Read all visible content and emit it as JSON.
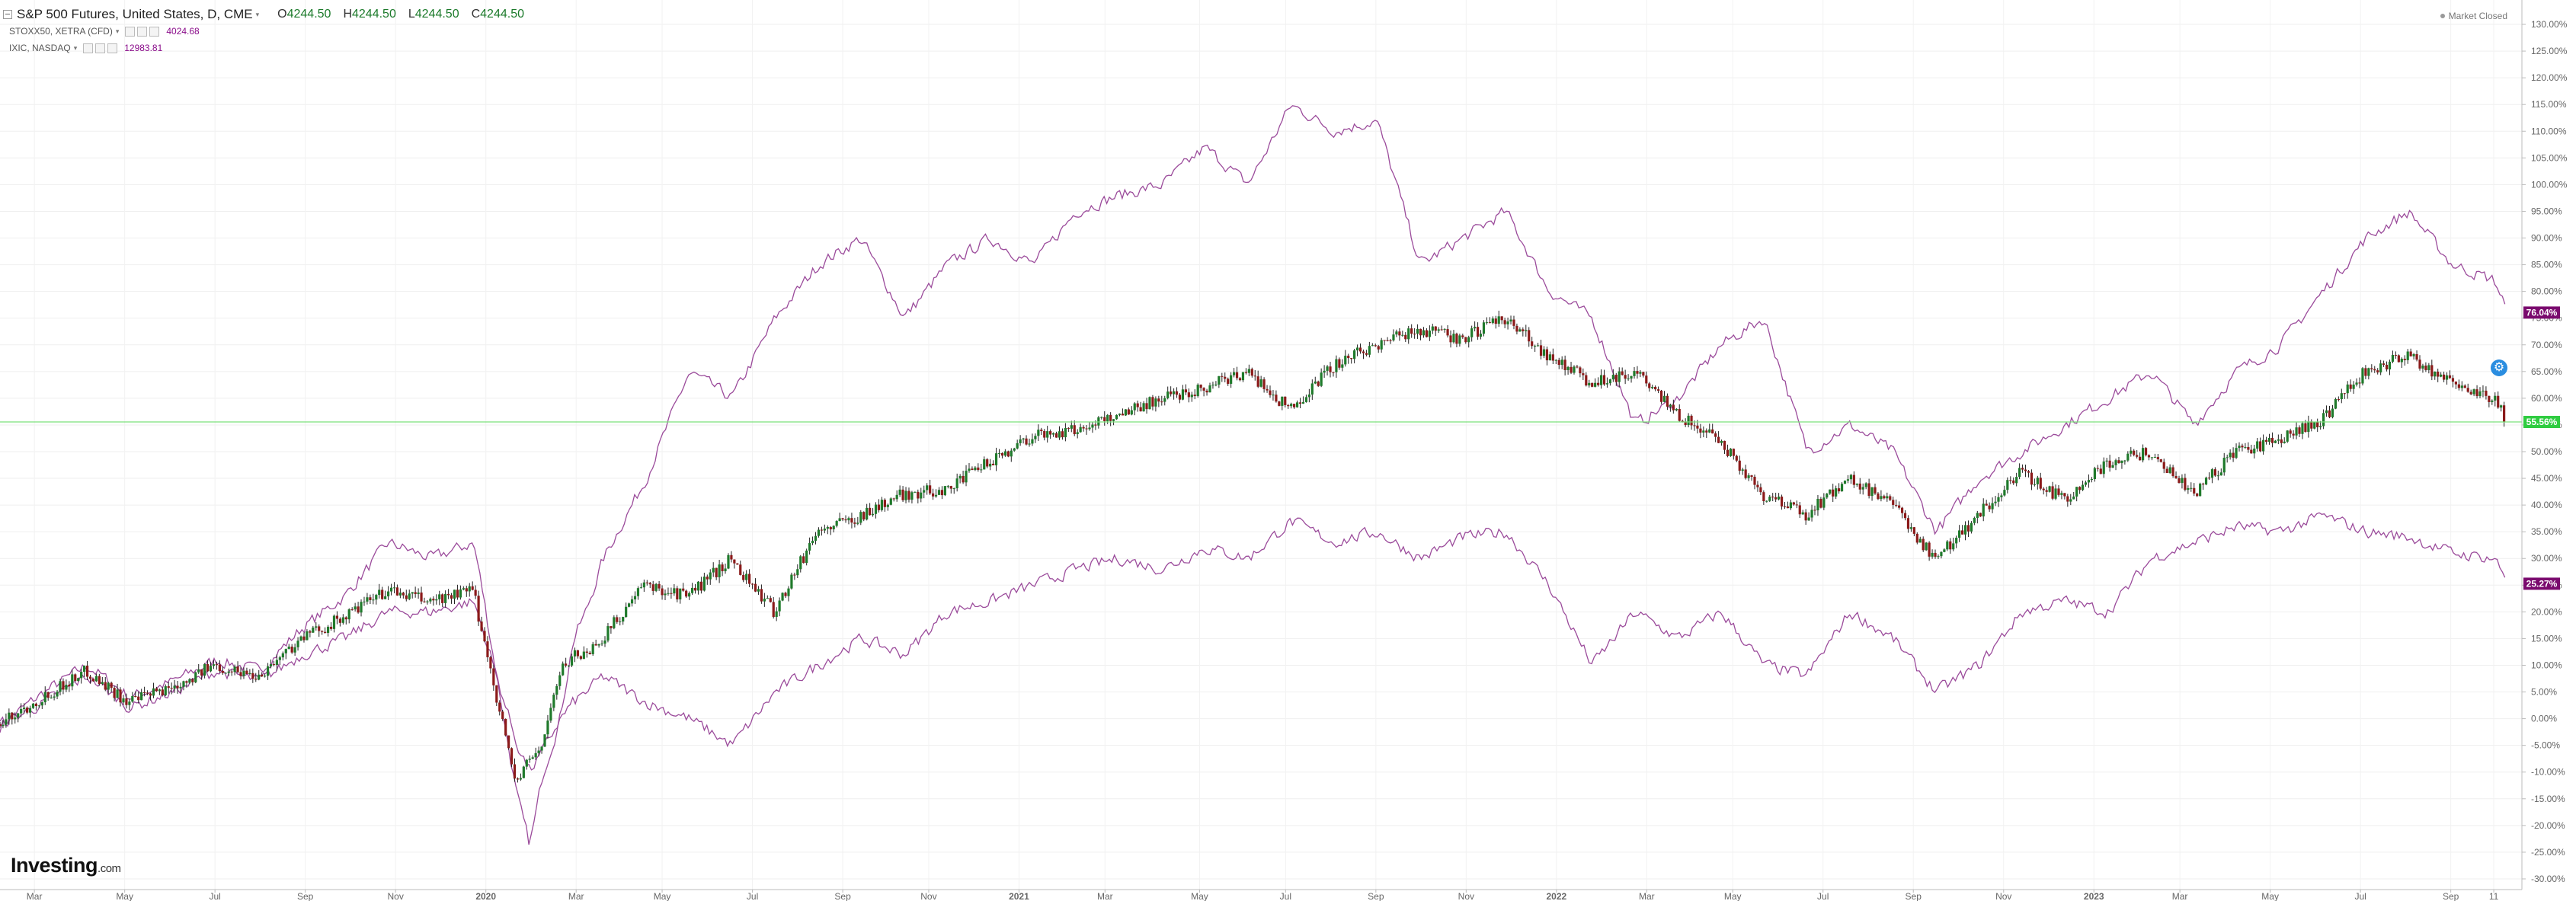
{
  "header": {
    "main": {
      "title": "S&P 500 Futures, United States, D, CME",
      "caret": "▾",
      "ohlc": [
        {
          "label": "O",
          "value": "4244.50"
        },
        {
          "label": "H",
          "value": "4244.50"
        },
        {
          "label": "L",
          "value": "4244.50"
        },
        {
          "label": "C",
          "value": "4244.50"
        }
      ]
    },
    "overlays": [
      {
        "label": "STOXX50, XETRA (CFD)",
        "value": "4024.68"
      },
      {
        "label": "IXIC, NASDAQ",
        "value": "12983.81"
      }
    ],
    "status": "Market Closed"
  },
  "branding": {
    "name": "Investing",
    "suffix": ".com"
  },
  "colors": {
    "up": "#1f7a2b",
    "down": "#8b1a1a",
    "wick": "#222222",
    "overlay": "#9b4b9b",
    "current_line": "#7be07b",
    "current_label": "#2ecc40",
    "overlay_label": "#7a0a6e",
    "gear": "#2a8de0"
  },
  "chart_data": {
    "type": "line",
    "ylim": [
      -32,
      132
    ],
    "yunit": "%",
    "yticks": [
      -30,
      -25,
      -20,
      -15,
      -10,
      -5,
      0,
      5,
      10,
      15,
      20,
      25,
      30,
      35,
      40,
      45,
      50,
      55,
      60,
      65,
      70,
      75,
      80,
      85,
      90,
      95,
      100,
      105,
      110,
      115,
      120,
      125,
      130
    ],
    "x_tick_labels": [
      "Mar",
      "May",
      "Jul",
      "Sep",
      "Nov",
      "2020",
      "Mar",
      "May",
      "Jul",
      "Sep",
      "Nov",
      "2021",
      "Mar",
      "May",
      "Jul",
      "Sep",
      "Nov",
      "2022",
      "Mar",
      "May",
      "Jul",
      "Sep",
      "Nov",
      "2023",
      "Mar",
      "May",
      "Jul",
      "Sep",
      "11"
    ],
    "x_tick_index": [
      0.8,
      2.9,
      5.0,
      7.1,
      9.2,
      11.3,
      13.4,
      15.4,
      17.5,
      19.6,
      21.6,
      23.7,
      25.7,
      27.9,
      29.9,
      32.0,
      34.1,
      36.2,
      38.3,
      40.3,
      42.4,
      44.5,
      46.6,
      48.7,
      50.7,
      52.8,
      54.9,
      57.0,
      58.0
    ],
    "x_bold_labels": [
      "2020",
      "2021",
      "2022",
      "2023"
    ],
    "x_index_max": 58.3,
    "series": [
      {
        "name": "S&P 500 Futures",
        "style": "candlestick",
        "x": [
          0,
          1,
          2,
          3,
          4,
          5,
          6,
          7,
          8,
          9,
          10,
          11,
          12,
          12.3,
          12.6,
          13,
          13.3,
          13.6,
          14,
          15,
          16,
          17,
          18,
          19,
          20,
          21,
          22,
          23,
          24,
          25,
          26,
          27,
          28,
          29,
          30,
          31,
          32,
          33,
          34,
          35,
          36,
          37,
          38,
          39,
          40,
          41,
          42,
          43,
          44,
          45,
          46,
          47,
          48,
          49,
          50,
          51,
          52,
          53,
          54,
          55,
          56,
          57,
          58,
          58.3
        ],
        "values": [
          -1,
          4,
          9,
          3,
          6,
          10,
          8,
          15,
          19,
          24,
          22,
          24,
          -12,
          -8,
          -5,
          8,
          12,
          12,
          15,
          25,
          23,
          30,
          20,
          35,
          38,
          42,
          43,
          48,
          53,
          54,
          57,
          60,
          62,
          65,
          58,
          66,
          70,
          73,
          71,
          75,
          68,
          63,
          65,
          57,
          52,
          42,
          38,
          45,
          40,
          30,
          38,
          46,
          41,
          48,
          50,
          42,
          50,
          52,
          56,
          65,
          68,
          63,
          60,
          55.56
        ]
      },
      {
        "name": "IXIC, NASDAQ",
        "style": "line",
        "x": [
          0,
          1,
          2,
          3,
          4,
          5,
          6,
          7,
          8,
          9,
          10,
          11,
          12,
          12.3,
          12.6,
          13,
          13.3,
          13.6,
          14,
          15,
          16,
          17,
          18,
          19,
          20,
          21,
          22,
          23,
          24,
          25,
          26,
          27,
          28,
          29,
          30,
          31,
          32,
          33,
          34,
          35,
          36,
          37,
          38,
          39,
          40,
          41,
          42,
          43,
          44,
          45,
          46,
          47,
          48,
          49,
          50,
          51,
          52,
          53,
          54,
          55,
          56,
          57,
          58,
          58.3
        ],
        "values": [
          -1,
          5,
          10,
          4,
          7,
          11,
          9,
          17,
          23,
          33,
          30,
          33,
          -15,
          -24,
          -10,
          0,
          15,
          20,
          30,
          45,
          65,
          60,
          75,
          85,
          90,
          75,
          85,
          90,
          85,
          95,
          98,
          100,
          107,
          100,
          115,
          110,
          112,
          85,
          90,
          95,
          80,
          75,
          55,
          60,
          70,
          75,
          50,
          55,
          50,
          35,
          45,
          50,
          55,
          60,
          65,
          55,
          65,
          70,
          80,
          90,
          95,
          85,
          82,
          76.04
        ]
      },
      {
        "name": "STOXX50, XETRA (CFD)",
        "style": "line",
        "x": [
          0,
          1,
          2,
          3,
          4,
          5,
          6,
          7,
          8,
          9,
          10,
          11,
          12,
          12.3,
          12.6,
          13,
          13.3,
          13.6,
          14,
          15,
          16,
          17,
          18,
          19,
          20,
          21,
          22,
          23,
          24,
          25,
          26,
          27,
          28,
          29,
          30,
          31,
          32,
          33,
          34,
          35,
          36,
          37,
          38,
          39,
          40,
          41,
          42,
          43,
          44,
          45,
          46,
          47,
          48,
          49,
          50,
          51,
          52,
          53,
          54,
          55,
          56,
          57,
          58,
          58.3
        ],
        "values": [
          -1,
          3,
          8,
          2,
          5,
          9,
          7,
          12,
          15,
          20,
          20,
          22,
          -5,
          -10,
          -6,
          0,
          3,
          5,
          8,
          3,
          0,
          -5,
          5,
          10,
          15,
          12,
          20,
          22,
          25,
          28,
          30,
          28,
          32,
          30,
          37,
          33,
          35,
          30,
          34,
          35,
          25,
          10,
          20,
          15,
          20,
          10,
          8,
          20,
          15,
          5,
          10,
          20,
          22,
          20,
          30,
          33,
          36,
          35,
          38,
          35,
          34,
          31,
          30,
          25.27
        ]
      }
    ],
    "current_value": {
      "value": 55.56,
      "label": "55.56%"
    },
    "end_labels": [
      {
        "series": "IXIC, NASDAQ",
        "label": "76.04%",
        "value": 76.04
      },
      {
        "series": "STOXX50, XETRA (CFD)",
        "label": "25.27%",
        "value": 25.27
      }
    ]
  }
}
